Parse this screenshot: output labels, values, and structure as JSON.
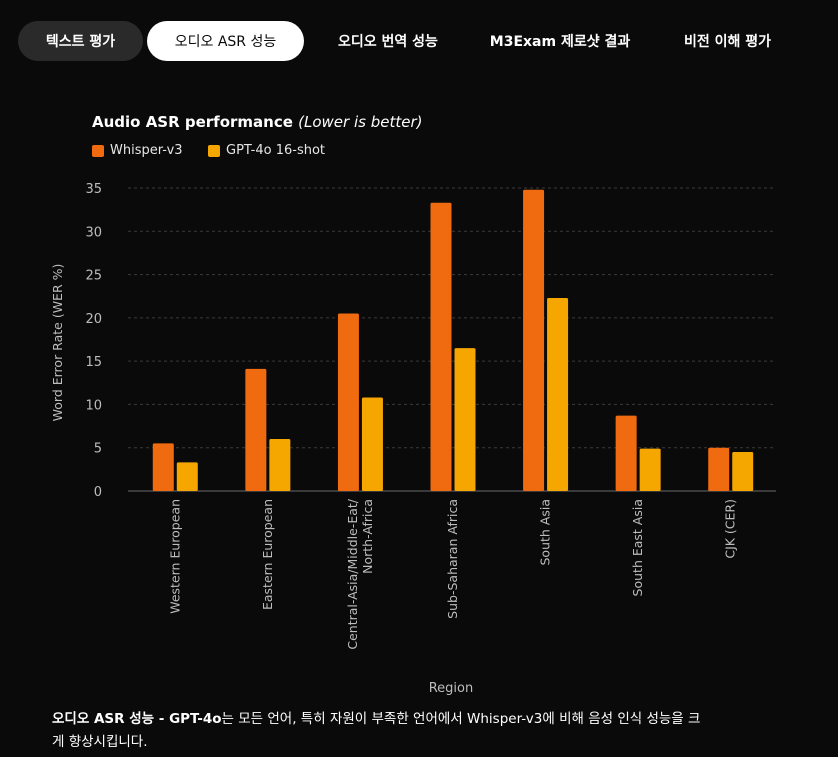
{
  "tabs": [
    {
      "label": "텍스트 평가",
      "active": false
    },
    {
      "label": "오디오 ASR 성능",
      "active": true
    },
    {
      "label": "오디오 번역 성능",
      "active": false
    },
    {
      "label": "M3Exam 제로샷 결과",
      "active": false
    },
    {
      "label": "비전 이해 평가",
      "active": false
    }
  ],
  "colors": {
    "background": "#0a0a0a",
    "whisper": "#f06a0f",
    "gpt4o": "#f5a700",
    "grid": "#3a3a3a",
    "axis_text": "#bdbdbd"
  },
  "chart_data": {
    "type": "bar",
    "title": "Audio ASR performance",
    "title_suffix": "(Lower is better)",
    "xlabel": "Region",
    "ylabel": "Word Error Rate (WER %)",
    "ylim": [
      0,
      35
    ],
    "yticks": [
      0,
      5,
      10,
      15,
      20,
      25,
      30,
      35
    ],
    "grid": true,
    "legend_position": "top-left",
    "categories": [
      "Western European",
      "Eastern European",
      "Central-Asia/Middle-Eat/\nNorth-Africa",
      "Sub-Saharan Africa",
      "South Asia",
      "South East Asia",
      "CJK (CER)"
    ],
    "series": [
      {
        "name": "Whisper-v3",
        "values": [
          5.5,
          14.1,
          20.5,
          33.3,
          34.8,
          8.7,
          5.0
        ]
      },
      {
        "name": "GPT-4o 16-shot",
        "values": [
          3.3,
          6.0,
          10.8,
          16.5,
          22.3,
          4.9,
          4.5
        ]
      }
    ]
  },
  "caption": {
    "lead": "오디오 ASR 성능 - GPT-4o",
    "text": "는 모든 언어, 특히 자원이 부족한 언어에서 Whisper-v3에 비해 음성 인식 성능을 크게 향상시킵니다."
  }
}
